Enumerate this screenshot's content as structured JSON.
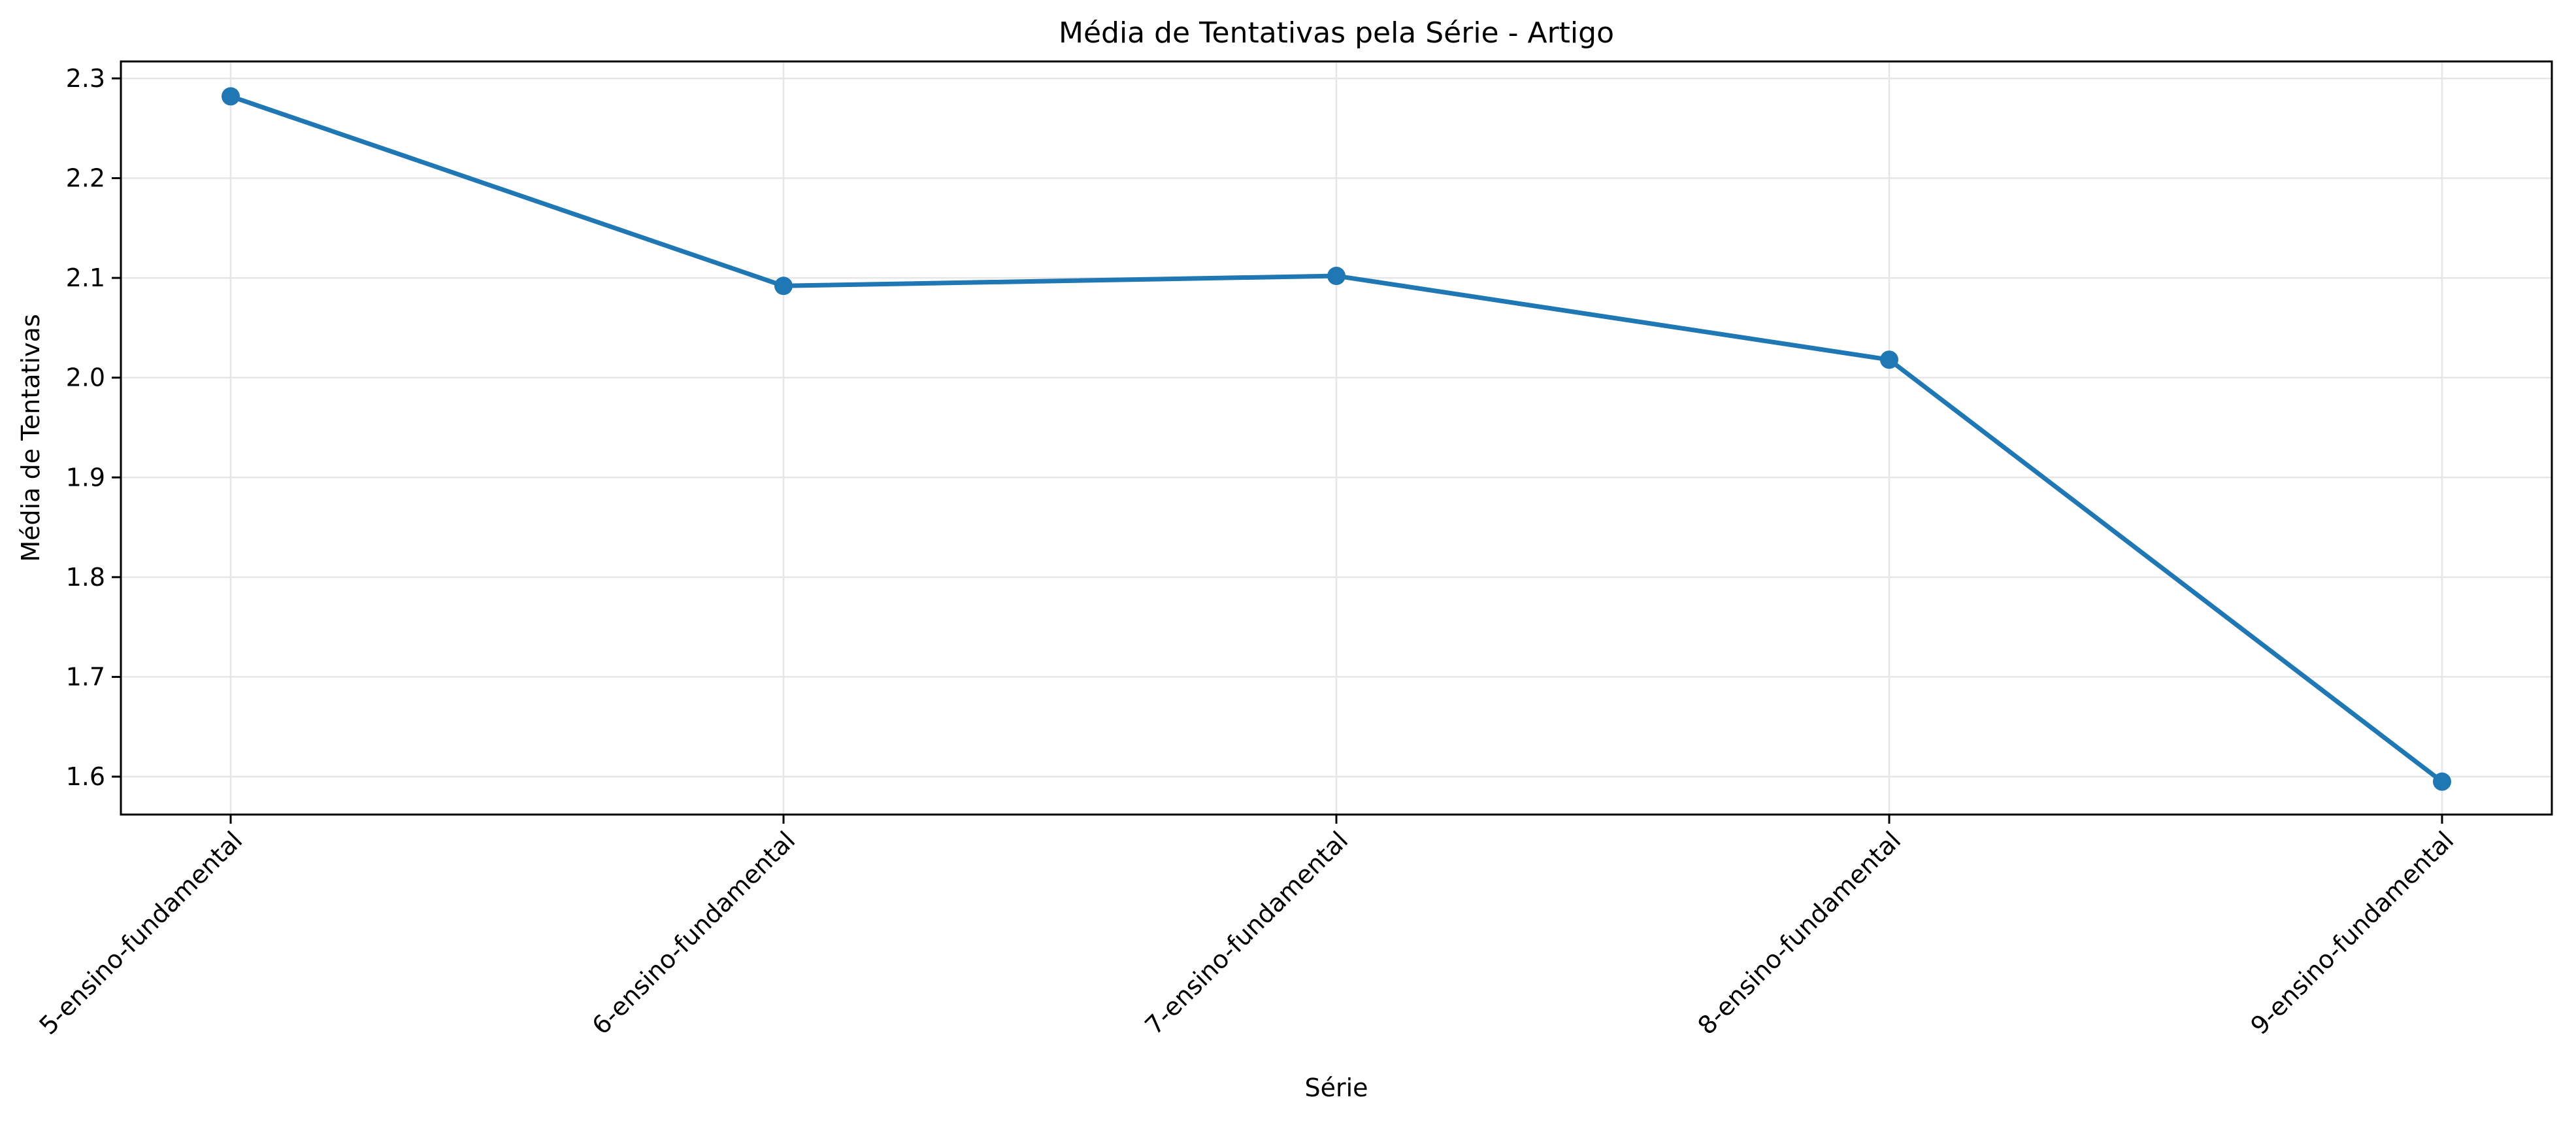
{
  "chart_data": {
    "type": "line",
    "title": "Média de Tentativas pela Série - Artigo",
    "xlabel": "Série",
    "ylabel": "Média de Tentativas",
    "categories": [
      "5-ensino-fundamental",
      "6-ensino-fundamental",
      "7-ensino-fundamental",
      "8-ensino-fundamental",
      "9-ensino-fundamental"
    ],
    "series": [
      {
        "values": [
          2.282,
          2.092,
          2.102,
          2.018,
          1.595
        ],
        "color": "#1f77b4",
        "marker": "circle"
      }
    ],
    "ylim": [
      1.562,
      2.317
    ],
    "yticks": [
      "1.6",
      "1.7",
      "1.8",
      "1.9",
      "2.0",
      "2.1",
      "2.2",
      "2.3"
    ],
    "grid": true,
    "x_tick_rotation_deg": 45
  }
}
